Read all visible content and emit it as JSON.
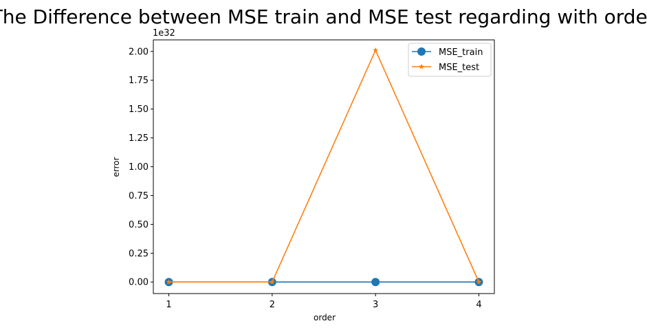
{
  "chart_data": {
    "type": "line",
    "title": "The Difference between MSE train and MSE test regarding with order",
    "xlabel": "order",
    "ylabel": "error",
    "y_offset_label": "1e32",
    "x": [
      1,
      2,
      3,
      4
    ],
    "x_tick_labels": [
      "1",
      "2",
      "3",
      "4"
    ],
    "y_ticks": [
      0,
      0.25,
      0.5,
      0.75,
      1.0,
      1.25,
      1.5,
      1.75,
      2.0
    ],
    "y_tick_labels": [
      "0.00",
      "0.25",
      "0.50",
      "0.75",
      "1.00",
      "1.25",
      "1.50",
      "1.75",
      "2.00"
    ],
    "ylim": [
      -0.1,
      2.1
    ],
    "xlim": [
      0.85,
      4.15
    ],
    "y_scale_factor": 1e+32,
    "grid": false,
    "legend_position": "top-right",
    "series": [
      {
        "name": "MSE_train",
        "values": [
          0,
          0,
          0,
          0
        ],
        "marker": "circle",
        "color": "#1f77b4"
      },
      {
        "name": "MSE_test",
        "values": [
          0,
          0,
          2.01,
          0
        ],
        "marker": "star",
        "color": "#ff7f0e"
      }
    ]
  }
}
